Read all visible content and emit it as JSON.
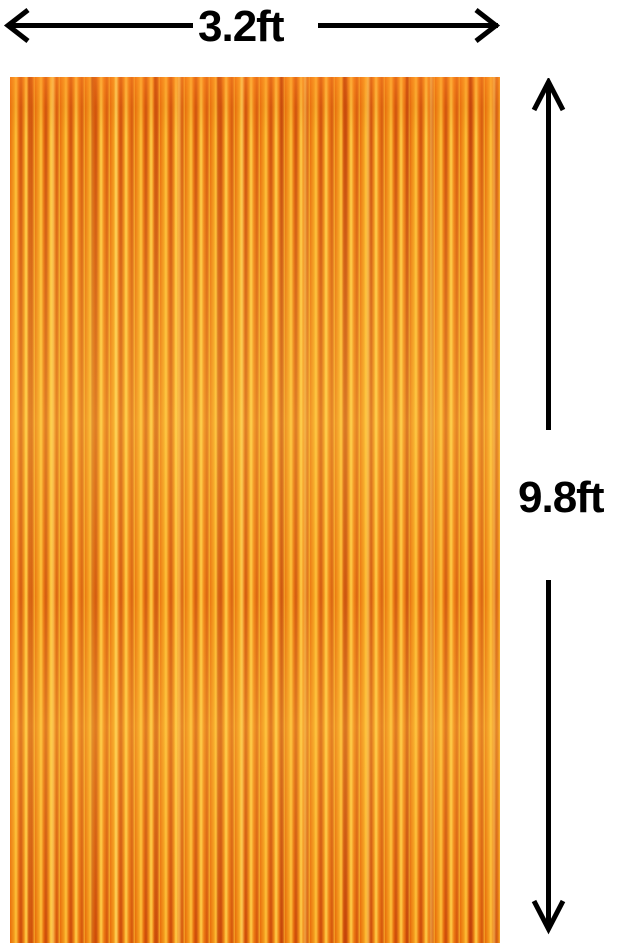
{
  "width_label": "3.2ft",
  "height_label": "9.8ft",
  "product_color": "#f08a16"
}
